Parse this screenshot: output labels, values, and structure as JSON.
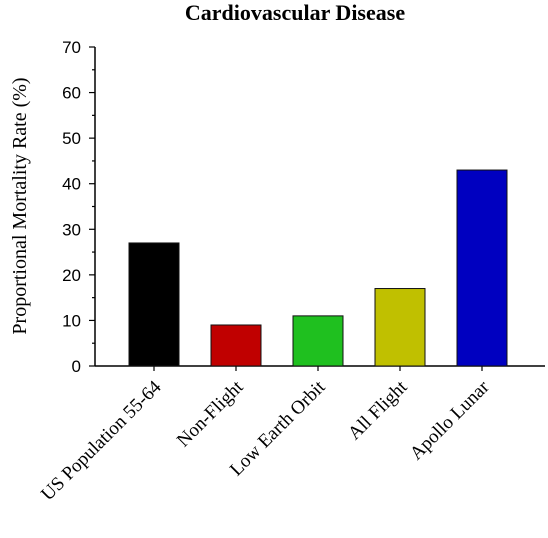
{
  "chart_data": {
    "type": "bar",
    "title": "Cardiovascular Disease",
    "xlabel": "",
    "ylabel": "Proportional Mortality Rate (%)",
    "ylim": [
      0,
      70
    ],
    "yticks": [
      0,
      10,
      20,
      30,
      40,
      50,
      60,
      70
    ],
    "categories": [
      "US Population 55-64",
      "Non-Flight",
      "Low Earth Orbit",
      "All Flight",
      "Apollo Lunar"
    ],
    "values": [
      27,
      9,
      11,
      17,
      43
    ],
    "colors": [
      "#000000",
      "#c00000",
      "#1fc01f",
      "#c0c000",
      "#0000c0"
    ],
    "grid": false,
    "legend": "none"
  }
}
